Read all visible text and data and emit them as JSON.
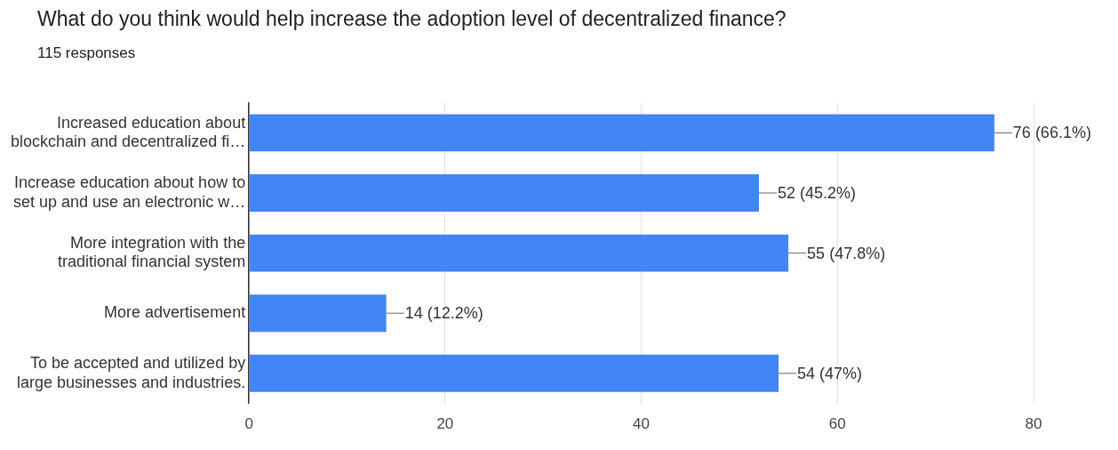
{
  "chart_data": {
    "type": "bar",
    "orientation": "horizontal",
    "title": "What do you think would help increase the adoption level of decentralized finance?",
    "subtitle": "115 responses",
    "categories": [
      "Increased education about\nblockchain and decentralized fi…",
      "Increase education about how to\nset up and use an electronic w…",
      "More integration with the\ntraditional financial system",
      "More advertisement",
      "To be accepted and utilized by\nlarge businesses and industries."
    ],
    "values": [
      76,
      52,
      55,
      14,
      54
    ],
    "value_labels": [
      "76 (66.1%)",
      "52 (45.2%)",
      "55 (47.8%)",
      "14 (12.2%)",
      "54 (47%)"
    ],
    "color": "#4285f4",
    "xlim": [
      0,
      80
    ],
    "xticks": [
      0,
      20,
      40,
      60,
      80
    ],
    "grid": "x",
    "legend": false
  }
}
